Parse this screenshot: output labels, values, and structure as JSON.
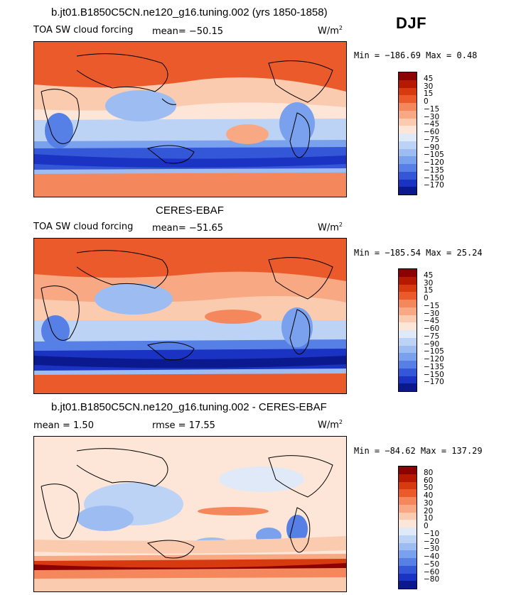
{
  "season": "DJF",
  "panels": [
    {
      "title": "b.jt01.B1850C5CN.ne120_g16.tuning.002 (yrs 1850-1858)",
      "variable": "TOA SW cloud forcing",
      "mean_text": "mean= −50.15",
      "units": "W/m",
      "units_sup": "2",
      "stats": "Min = −186.69 Max =   0.48",
      "levels": [
        "45",
        "30",
        "15",
        "0",
        "−15",
        "−30",
        "−45",
        "−60",
        "−75",
        "−90",
        "−105",
        "−120",
        "−135",
        "−150",
        "−170"
      ],
      "colors": [
        "#8b0000",
        "#b51a00",
        "#d73a0f",
        "#ea5a2b",
        "#f4885c",
        "#f8a983",
        "#fbcbb0",
        "#fde6d8",
        "#dfe9f8",
        "#bcd3f5",
        "#9cbcf2",
        "#7aa1ee",
        "#5680e6",
        "#3457d8",
        "#1a33c2",
        "#0a1a8e"
      ]
    },
    {
      "title": "CERES-EBAF",
      "variable": "TOA SW cloud forcing",
      "mean_text": "mean= −51.65",
      "units": "W/m",
      "units_sup": "2",
      "stats": "Min = −185.54 Max =  25.24",
      "levels": [
        "45",
        "30",
        "15",
        "0",
        "−15",
        "−30",
        "−45",
        "−60",
        "−75",
        "−90",
        "−105",
        "−120",
        "−135",
        "−150",
        "−170"
      ],
      "colors": [
        "#8b0000",
        "#b51a00",
        "#d73a0f",
        "#ea5a2b",
        "#f4885c",
        "#f8a983",
        "#fbcbb0",
        "#fde6d8",
        "#dfe9f8",
        "#bcd3f5",
        "#9cbcf2",
        "#7aa1ee",
        "#5680e6",
        "#3457d8",
        "#1a33c2",
        "#0a1a8e"
      ]
    },
    {
      "title": "b.jt01.B1850C5CN.ne120_g16.tuning.002 - CERES-EBAF",
      "mean_text": "mean =   1.50",
      "rmse_text": "rmse =  17.55",
      "units": "W/m",
      "units_sup": "2",
      "stats": "Min = −84.62 Max = 137.29",
      "levels": [
        "80",
        "60",
        "50",
        "40",
        "30",
        "20",
        "10",
        "0",
        "−10",
        "−20",
        "−30",
        "−40",
        "−50",
        "−60",
        "−80"
      ],
      "colors": [
        "#8b0000",
        "#b51a00",
        "#d73a0f",
        "#ea5a2b",
        "#f4885c",
        "#f8a983",
        "#fbcbb0",
        "#fde6d8",
        "#dfe9f8",
        "#bcd3f5",
        "#9cbcf2",
        "#7aa1ee",
        "#5680e6",
        "#3457d8",
        "#1a33c2",
        "#0a1a8e"
      ]
    }
  ]
}
